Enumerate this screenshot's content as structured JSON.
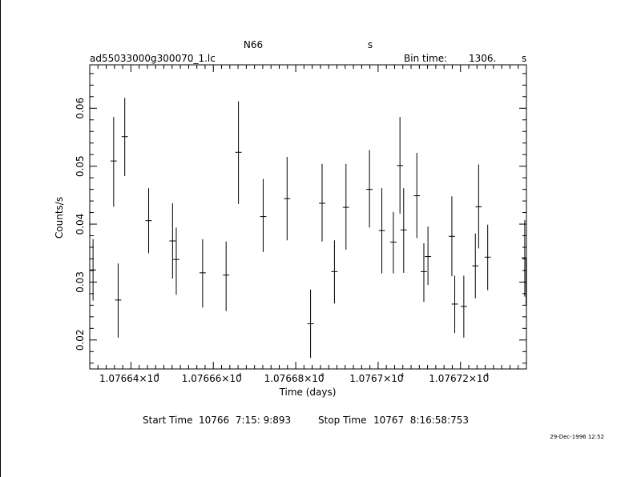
{
  "header": {
    "object": "N66",
    "unit_top": "s",
    "filename": "ad55033000g300070_1.lc",
    "bin_label": "Bin time:",
    "bin_value": "1306.",
    "bin_unit": "s"
  },
  "footer": {
    "start_label": "Start Time",
    "start_value": "10766  7:15: 9:893",
    "stop_label": "Stop Time",
    "stop_value": "10767  8:16:58:753",
    "stamp": "29-Dec-1996 12:52"
  },
  "chart_data": {
    "type": "scatter",
    "style": "error-bars",
    "title": "N66",
    "xlabel": "Time (days)",
    "ylabel": "Counts/s",
    "xlim": [
      10766.3,
      10767.36
    ],
    "ylim": [
      0.015,
      0.0675
    ],
    "x_ticks": [
      {
        "value": 10766.4,
        "label": "1.07664×10",
        "exp": "4"
      },
      {
        "value": 10766.6,
        "label": "1.07666×10",
        "exp": "4"
      },
      {
        "value": 10766.8,
        "label": "1.07668×10",
        "exp": "4"
      },
      {
        "value": 10767.0,
        "label": "1.0767×10",
        "exp": "4"
      },
      {
        "value": 10767.2,
        "label": "1.07672×10",
        "exp": "4"
      }
    ],
    "y_ticks": [
      {
        "value": 0.02,
        "label": "0.02"
      },
      {
        "value": 0.03,
        "label": "0.03"
      },
      {
        "value": 0.04,
        "label": "0.04"
      },
      {
        "value": 0.05,
        "label": "0.05"
      },
      {
        "value": 0.06,
        "label": "0.06"
      }
    ],
    "grid": false,
    "points": [
      {
        "x": 10766.308,
        "y": 0.0321,
        "xerr": 0.0076,
        "ylo": 0.0268,
        "yhi": 0.0374
      },
      {
        "x": 10766.358,
        "y": 0.0509,
        "xerr": 0.0076,
        "ylo": 0.043,
        "yhi": 0.0585
      },
      {
        "x": 10766.369,
        "y": 0.0269,
        "xerr": 0.0076,
        "ylo": 0.0204,
        "yhi": 0.0332
      },
      {
        "x": 10766.385,
        "y": 0.0551,
        "xerr": 0.0076,
        "ylo": 0.0483,
        "yhi": 0.0618
      },
      {
        "x": 10766.443,
        "y": 0.0406,
        "xerr": 0.0076,
        "ylo": 0.035,
        "yhi": 0.0462
      },
      {
        "x": 10766.501,
        "y": 0.0371,
        "xerr": 0.0076,
        "ylo": 0.0306,
        "yhi": 0.0436
      },
      {
        "x": 10766.51,
        "y": 0.0339,
        "xerr": 0.0076,
        "ylo": 0.0278,
        "yhi": 0.0394
      },
      {
        "x": 10766.574,
        "y": 0.0316,
        "xerr": 0.0076,
        "ylo": 0.0256,
        "yhi": 0.0374
      },
      {
        "x": 10766.631,
        "y": 0.0312,
        "xerr": 0.0076,
        "ylo": 0.025,
        "yhi": 0.037
      },
      {
        "x": 10766.661,
        "y": 0.0524,
        "xerr": 0.0076,
        "ylo": 0.0435,
        "yhi": 0.0612
      },
      {
        "x": 10766.721,
        "y": 0.0413,
        "xerr": 0.0076,
        "ylo": 0.0352,
        "yhi": 0.0478
      },
      {
        "x": 10766.779,
        "y": 0.0444,
        "xerr": 0.0076,
        "ylo": 0.0372,
        "yhi": 0.0516
      },
      {
        "x": 10766.836,
        "y": 0.0228,
        "xerr": 0.0076,
        "ylo": 0.0169,
        "yhi": 0.0287
      },
      {
        "x": 10766.864,
        "y": 0.0436,
        "xerr": 0.0076,
        "ylo": 0.037,
        "yhi": 0.0504
      },
      {
        "x": 10766.894,
        "y": 0.0318,
        "xerr": 0.0076,
        "ylo": 0.0263,
        "yhi": 0.0372
      },
      {
        "x": 10766.922,
        "y": 0.0429,
        "xerr": 0.0076,
        "ylo": 0.0356,
        "yhi": 0.0504
      },
      {
        "x": 10766.979,
        "y": 0.046,
        "xerr": 0.0076,
        "ylo": 0.0394,
        "yhi": 0.0528
      },
      {
        "x": 10767.009,
        "y": 0.0389,
        "xerr": 0.0076,
        "ylo": 0.0315,
        "yhi": 0.0462
      },
      {
        "x": 10767.037,
        "y": 0.0369,
        "xerr": 0.0076,
        "ylo": 0.0315,
        "yhi": 0.0421
      },
      {
        "x": 10767.053,
        "y": 0.0501,
        "xerr": 0.0076,
        "ylo": 0.0418,
        "yhi": 0.0585
      },
      {
        "x": 10767.062,
        "y": 0.039,
        "xerr": 0.0076,
        "ylo": 0.0316,
        "yhi": 0.0462
      },
      {
        "x": 10767.094,
        "y": 0.0449,
        "xerr": 0.0076,
        "ylo": 0.0376,
        "yhi": 0.0523
      },
      {
        "x": 10767.111,
        "y": 0.0318,
        "xerr": 0.0076,
        "ylo": 0.0266,
        "yhi": 0.0367
      },
      {
        "x": 10767.121,
        "y": 0.0344,
        "xerr": 0.0076,
        "ylo": 0.0295,
        "yhi": 0.0396
      },
      {
        "x": 10767.179,
        "y": 0.0379,
        "xerr": 0.0076,
        "ylo": 0.031,
        "yhi": 0.0448
      },
      {
        "x": 10767.186,
        "y": 0.0262,
        "xerr": 0.0076,
        "ylo": 0.0212,
        "yhi": 0.0311
      },
      {
        "x": 10767.208,
        "y": 0.0258,
        "xerr": 0.0076,
        "ylo": 0.0204,
        "yhi": 0.0311
      },
      {
        "x": 10767.236,
        "y": 0.0328,
        "xerr": 0.0076,
        "ylo": 0.0272,
        "yhi": 0.0384
      },
      {
        "x": 10767.244,
        "y": 0.043,
        "xerr": 0.0076,
        "ylo": 0.0358,
        "yhi": 0.0503
      },
      {
        "x": 10767.266,
        "y": 0.0343,
        "xerr": 0.0076,
        "ylo": 0.0286,
        "yhi": 0.0399
      },
      {
        "x": 10767.356,
        "y": 0.0342,
        "xerr": 0.0076,
        "ylo": 0.0275,
        "yhi": 0.0407
      },
      {
        "x": 10767.359,
        "y": 0.03,
        "xerr": 0.0076,
        "ylo": 0.026,
        "yhi": 0.034
      }
    ]
  }
}
